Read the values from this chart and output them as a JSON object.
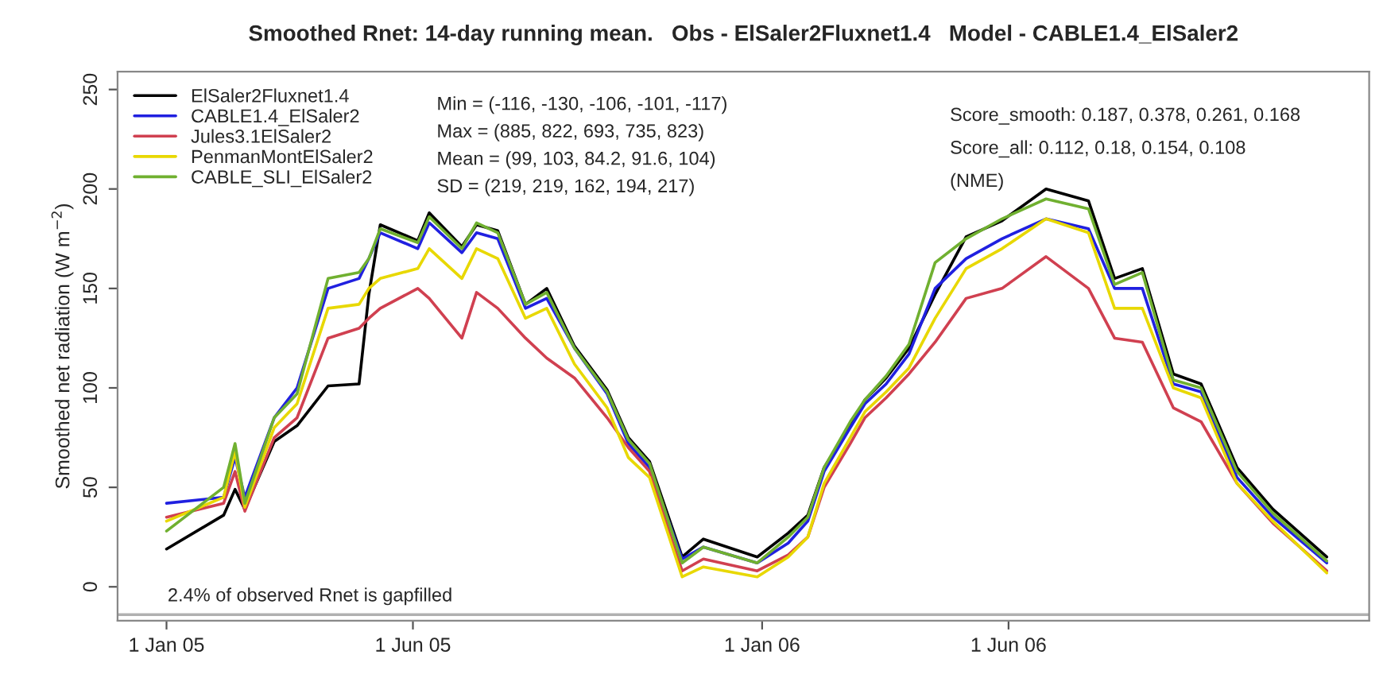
{
  "chart_data": {
    "type": "line",
    "title": "Smoothed Rnet: 14-day running mean.   Obs - ElSaler2Fluxnet1.4   Model - CABLE1.4_ElSaler2",
    "ylabel": "Smoothed net radiation (W m$^{−2}$)",
    "x": [
      "2005-01-01",
      "2005-02-05",
      "2005-02-12",
      "2005-02-18",
      "2005-03-08",
      "2005-03-22",
      "2005-04-10",
      "2005-04-29",
      "2005-05-05",
      "2005-05-12",
      "2005-06-04",
      "2005-06-11",
      "2005-07-01",
      "2005-07-10",
      "2005-07-23",
      "2005-08-09",
      "2005-08-22",
      "2005-09-08",
      "2005-09-28",
      "2005-10-11",
      "2005-10-24",
      "2005-11-13",
      "2005-11-26",
      "2005-12-29",
      "2006-01-17",
      "2006-01-29",
      "2006-02-08",
      "2006-02-24",
      "2006-03-05",
      "2006-03-18",
      "2006-04-01",
      "2006-04-17",
      "2006-05-06",
      "2006-05-28",
      "2006-06-24",
      "2006-07-20",
      "2006-08-05",
      "2006-08-22",
      "2006-09-10",
      "2006-09-27",
      "2006-10-19",
      "2006-11-10",
      "2006-12-13"
    ],
    "series": [
      {
        "name": "ElSaler2Fluxnet1.4",
        "color": "#000000",
        "values": [
          19,
          36,
          49,
          39,
          73,
          81,
          101,
          102,
          147,
          182,
          174,
          188,
          171,
          182,
          179,
          142,
          150,
          121,
          99,
          75,
          63,
          15,
          24,
          15,
          27,
          36,
          60,
          81,
          94,
          105,
          120,
          147,
          176,
          184,
          200,
          194,
          155,
          160,
          107,
          102,
          60,
          39,
          15
        ]
      },
      {
        "name": "CABLE1.4_ElSaler2",
        "color": "#2020e0",
        "values": [
          42,
          45,
          65,
          45,
          85,
          100,
          150,
          155,
          165,
          178,
          170,
          183,
          168,
          178,
          175,
          140,
          145,
          120,
          97,
          72,
          60,
          14,
          20,
          12,
          22,
          33,
          58,
          80,
          92,
          102,
          117,
          150,
          165,
          175,
          185,
          180,
          150,
          150,
          102,
          98,
          55,
          35,
          12
        ]
      },
      {
        "name": "Jules3.1ElSaler2",
        "color": "#d04050",
        "values": [
          35,
          42,
          58,
          38,
          75,
          85,
          125,
          130,
          135,
          140,
          150,
          145,
          125,
          148,
          140,
          125,
          115,
          105,
          85,
          70,
          58,
          8,
          14,
          8,
          16,
          25,
          50,
          72,
          85,
          95,
          107,
          123,
          145,
          150,
          166,
          150,
          125,
          123,
          90,
          83,
          52,
          32,
          8
        ]
      },
      {
        "name": "PenmanMontElSaler2",
        "color": "#e8d800",
        "values": [
          33,
          45,
          68,
          40,
          80,
          92,
          140,
          142,
          150,
          155,
          160,
          170,
          155,
          170,
          165,
          135,
          140,
          112,
          90,
          65,
          55,
          5,
          10,
          5,
          15,
          25,
          52,
          75,
          88,
          98,
          110,
          135,
          160,
          170,
          185,
          178,
          140,
          140,
          100,
          95,
          52,
          33,
          7
        ]
      },
      {
        "name": "CABLE_SLI_ElSaler2",
        "color": "#70b030",
        "values": [
          28,
          50,
          72,
          42,
          85,
          97,
          155,
          158,
          165,
          180,
          173,
          186,
          170,
          183,
          178,
          142,
          148,
          120,
          98,
          74,
          62,
          12,
          20,
          12,
          25,
          35,
          60,
          83,
          94,
          106,
          122,
          163,
          175,
          185,
          195,
          190,
          152,
          158,
          104,
          100,
          58,
          37,
          13
        ]
      }
    ],
    "xlim": [
      "2004-12-02",
      "2007-01-08"
    ],
    "xticks": [
      {
        "value": "2005-01-01",
        "label": "1 Jan 05"
      },
      {
        "value": "2005-06-01",
        "label": "1 Jun 05"
      },
      {
        "value": "2006-01-01",
        "label": "1 Jan 06"
      },
      {
        "value": "2006-06-01",
        "label": "1 Jun 06"
      }
    ],
    "ylim": [
      -17,
      259
    ],
    "yticks": [
      0,
      50,
      100,
      150,
      200,
      250
    ],
    "ref_lines": [
      {
        "axis": "y",
        "value": -14,
        "color": "#b0b0b0"
      }
    ],
    "annotations": [
      "Min = (-116, -130, -106, -101, -117)",
      "Max = (885, 822, 693, 735, 823)",
      "Mean = (99, 103, 84.2, 91.6, 104)",
      "SD = (219, 219, 162, 194, 217)",
      "Score_smooth: 0.187, 0.378, 0.261, 0.168",
      "Score_all: 0.112, 0.18, 0.154, 0.108",
      "(NME)",
      "2.4% of observed Rnet is gapfilled"
    ],
    "legend": "top left",
    "grid": false,
    "line_style": "solid"
  }
}
